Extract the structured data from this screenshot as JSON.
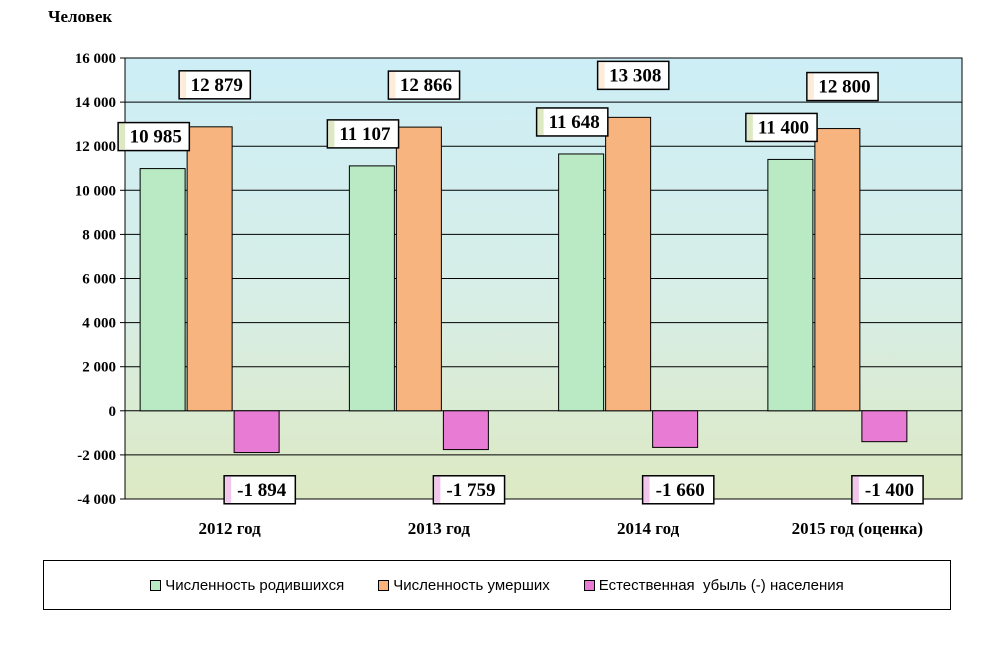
{
  "chart_data": {
    "type": "bar",
    "ylabel": "Человек",
    "categories": [
      "2012 год",
      "2013 год",
      "2014 год",
      "2015 год (оценка)"
    ],
    "series": [
      {
        "name": "Численность родившихся",
        "color": "#b9eac3",
        "values": [
          10985,
          11107,
          11648,
          11400
        ],
        "labels": [
          "10 985",
          "11 107",
          "11 648",
          "11 400"
        ]
      },
      {
        "name": "Численность умерших",
        "color": "#f7b47f",
        "values": [
          12879,
          12866,
          13308,
          12800
        ],
        "labels": [
          "12 879",
          "12 866",
          "13 308",
          "12 800"
        ]
      },
      {
        "name": "Естественная  убыль (-) населения",
        "color": "#e87bd3",
        "values": [
          -1894,
          -1759,
          -1660,
          -1400
        ],
        "labels": [
          "-1 894",
          "-1 759",
          "-1 660",
          "-1 400"
        ]
      }
    ],
    "ylim": [
      -4000,
      16000
    ],
    "yticks": [
      {
        "value": 16000,
        "label": "16 000"
      },
      {
        "value": 14000,
        "label": "14 000"
      },
      {
        "value": 12000,
        "label": "12 000"
      },
      {
        "value": 10000,
        "label": "10 000"
      },
      {
        "value": 8000,
        "label": "8 000"
      },
      {
        "value": 6000,
        "label": "6 000"
      },
      {
        "value": 4000,
        "label": "4 000"
      },
      {
        "value": 2000,
        "label": "2 000"
      },
      {
        "value": 0,
        "label": "0"
      },
      {
        "value": -2000,
        "label": "-2 000"
      },
      {
        "value": -4000,
        "label": "-4 000"
      }
    ],
    "grid": true,
    "legend_position": "bottom",
    "colors": {
      "plot_top": "#cdeef7",
      "plot_bottom": "#dde9c3"
    }
  }
}
